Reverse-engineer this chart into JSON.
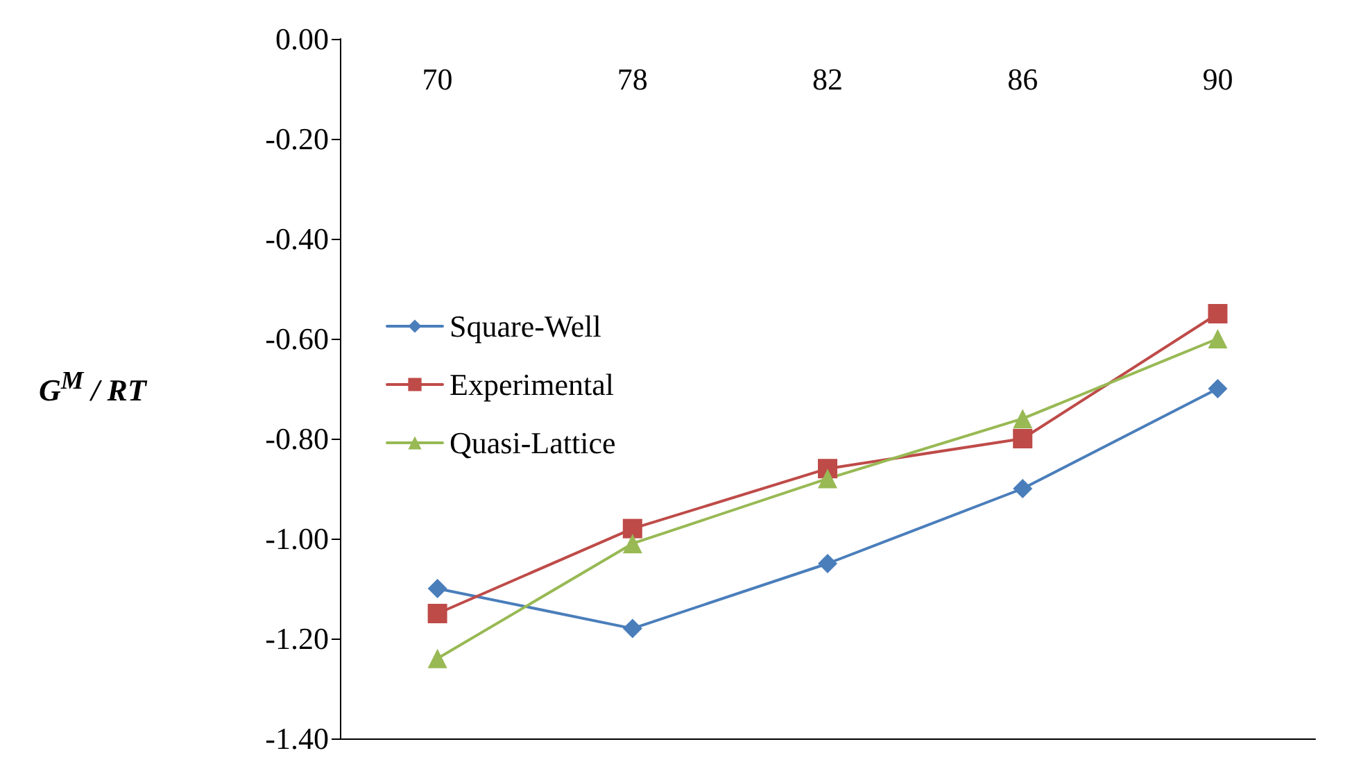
{
  "chart_data": {
    "type": "line",
    "categories": [
      "70",
      "78",
      "82",
      "86",
      "90"
    ],
    "ylabel": "G$^{M}$ / RT",
    "ylim": [
      -1.4,
      0
    ],
    "yticks": [
      {
        "value": -1.4,
        "label": "-1.40"
      },
      {
        "value": -1.2,
        "label": "-1.20"
      },
      {
        "value": -1.0,
        "label": "-1.00"
      },
      {
        "value": -0.8,
        "label": "-0.80"
      },
      {
        "value": -0.6,
        "label": "-0.60"
      },
      {
        "value": -0.4,
        "label": "-0.40"
      },
      {
        "value": -0.2,
        "label": "-0.20"
      },
      {
        "value": 0,
        "label": "0.00"
      }
    ],
    "grid": false,
    "legend": "left",
    "series": [
      {
        "name": "Square-Well",
        "color": "#4a7ebb",
        "marker": "diamond",
        "values": [
          -1.1,
          -1.18,
          -1.05,
          -0.9,
          -0.7
        ]
      },
      {
        "name": "Experimental",
        "color": "#be4b48",
        "marker": "square",
        "values": [
          -1.15,
          -0.98,
          -0.86,
          -0.8,
          -0.55
        ]
      },
      {
        "name": "Quasi-Lattice",
        "color": "#98b954",
        "marker": "triangle",
        "values": [
          -1.24,
          -1.01,
          -0.88,
          -0.76,
          -0.6
        ]
      }
    ]
  }
}
